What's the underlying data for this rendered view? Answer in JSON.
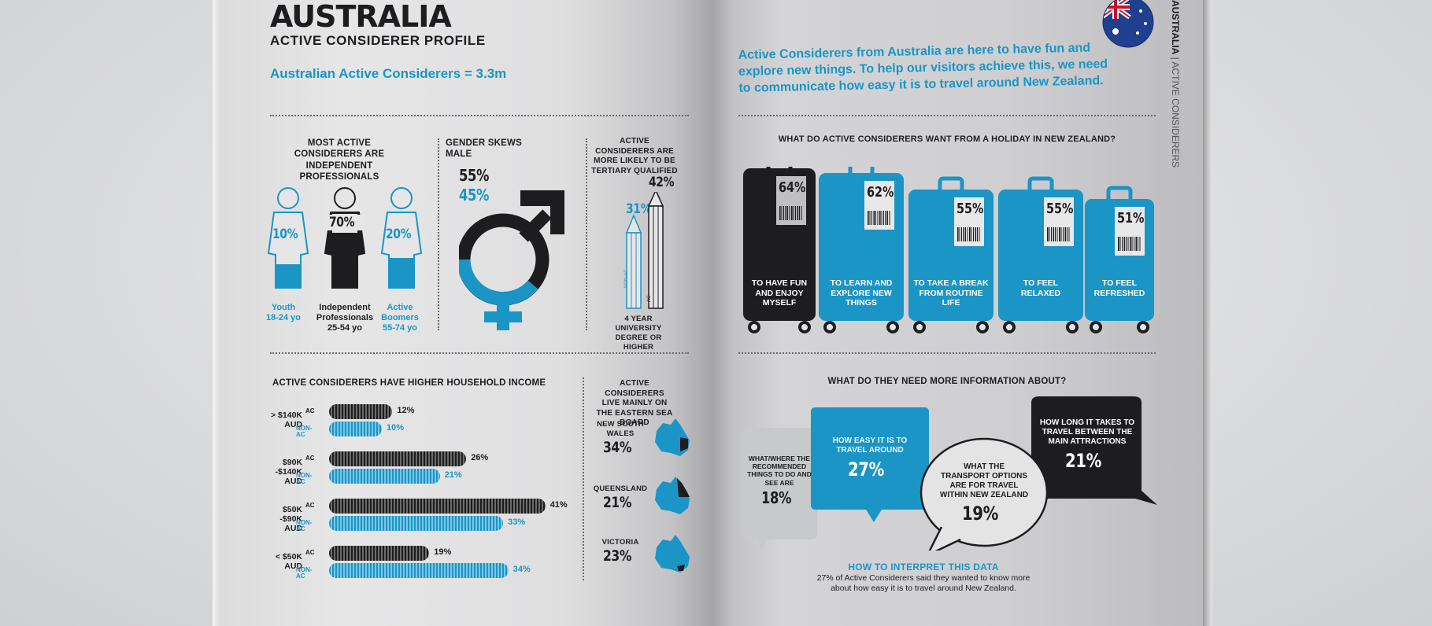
{
  "left": {
    "title": "AUSTRALIA",
    "subtitle": "ACTIVE CONSIDERER PROFILE",
    "lead": "Australian Active Considerers = 3.3m",
    "professionals": {
      "heading": "MOST ACTIVE CONSIDERERS ARE INDEPENDENT PROFESSIONALS",
      "figures": [
        {
          "pct": "10%",
          "label": "Youth",
          "age": "18-24 yo"
        },
        {
          "pct": "70%",
          "label": "Independent Professionals",
          "age": "25-54 yo"
        },
        {
          "pct": "20%",
          "label": "Active Boomers",
          "age": "55-74 yo"
        }
      ]
    },
    "gender": {
      "heading": "GENDER SKEWS MALE",
      "male": "55%",
      "female": "45%"
    },
    "tertiary": {
      "heading": "ACTIVE CONSIDERERS ARE MORE LIKELY TO BE TERTIARY QUALIFIED",
      "non_ac_pct": "31%",
      "ac_pct": "42%",
      "non_ac_tag": "NON-AC",
      "ac_tag": "AC",
      "caption": "4 YEAR UNIVERSITY DEGREE OR HIGHER"
    },
    "income": {
      "heading": "ACTIVE CONSIDERERS HAVE HIGHER HOUSEHOLD INCOME",
      "ac_label": "AC",
      "non_label": "NON-AC",
      "groups": [
        {
          "label": "> $140K AUD",
          "ac": 12,
          "non": 10,
          "ac_text": "12%",
          "non_text": "10%"
        },
        {
          "label": "$90K -$140K AUD",
          "ac": 26,
          "non": 21,
          "ac_text": "26%",
          "non_text": "21%"
        },
        {
          "label": "$50K -$90K AUD",
          "ac": 41,
          "non": 33,
          "ac_text": "41%",
          "non_text": "33%"
        },
        {
          "label": "< $50K AUD",
          "ac": 19,
          "non": 34,
          "ac_text": "19%",
          "non_text": "34%"
        }
      ]
    },
    "states": {
      "heading": "ACTIVE CONSIDERERS LIVE MAINLY ON THE EASTERN SEA BOARD",
      "items": [
        {
          "name": "NEW SOUTH WALES",
          "pct": "34%"
        },
        {
          "name": "QUEENSLAND",
          "pct": "21%"
        },
        {
          "name": "VICTORIA",
          "pct": "23%"
        }
      ]
    }
  },
  "right": {
    "intro": "Active Considerers from Australia are here to have fun and explore new things. To help our visitors achieve this, we need to communicate how easy it is to travel around New Zealand.",
    "side_label_bold": "AUSTRALIA",
    "side_label_light": "ACTIVE CONSIDERERS",
    "holiday": {
      "heading": "WHAT DO ACTIVE CONSIDERERS WANT FROM A HOLIDAY IN NEW ZEALAND?",
      "cases": [
        {
          "pct": "64%",
          "label": "TO HAVE FUN AND ENJOY MYSELF"
        },
        {
          "pct": "62%",
          "label": "TO LEARN AND EXPLORE NEW THINGS"
        },
        {
          "pct": "55%",
          "label": "TO TAKE A BREAK FROM ROUTINE LIFE"
        },
        {
          "pct": "55%",
          "label": "TO FEEL RELAXED"
        },
        {
          "pct": "51%",
          "label": "TO FEEL REFRESHED"
        }
      ]
    },
    "info": {
      "heading": "WHAT DO THEY NEED MORE INFORMATION ABOUT?",
      "bubbles": [
        {
          "text": "WHAT/WHERE THE RECOMMENDED THINGS TO DO AND SEE ARE",
          "pct": "18%"
        },
        {
          "text": "HOW EASY IT IS TO TRAVEL AROUND",
          "pct": "27%"
        },
        {
          "text": "WHAT THE TRANSPORT OPTIONS ARE FOR TRAVEL WITHIN NEW ZEALAND",
          "pct": "19%"
        },
        {
          "text": "HOW LONG IT TAKES TO TRAVEL BETWEEN THE MAIN ATTRACTIONS",
          "pct": "21%"
        }
      ],
      "interpret_title": "HOW TO INTERPRET THIS DATA",
      "interpret_text": "27% of Active Considerers said they wanted to know more about how easy it is to travel around New Zealand."
    }
  },
  "colors": {
    "blue": "#1a95c6",
    "black": "#1d1d1f",
    "grey": "#c8c9cb"
  }
}
